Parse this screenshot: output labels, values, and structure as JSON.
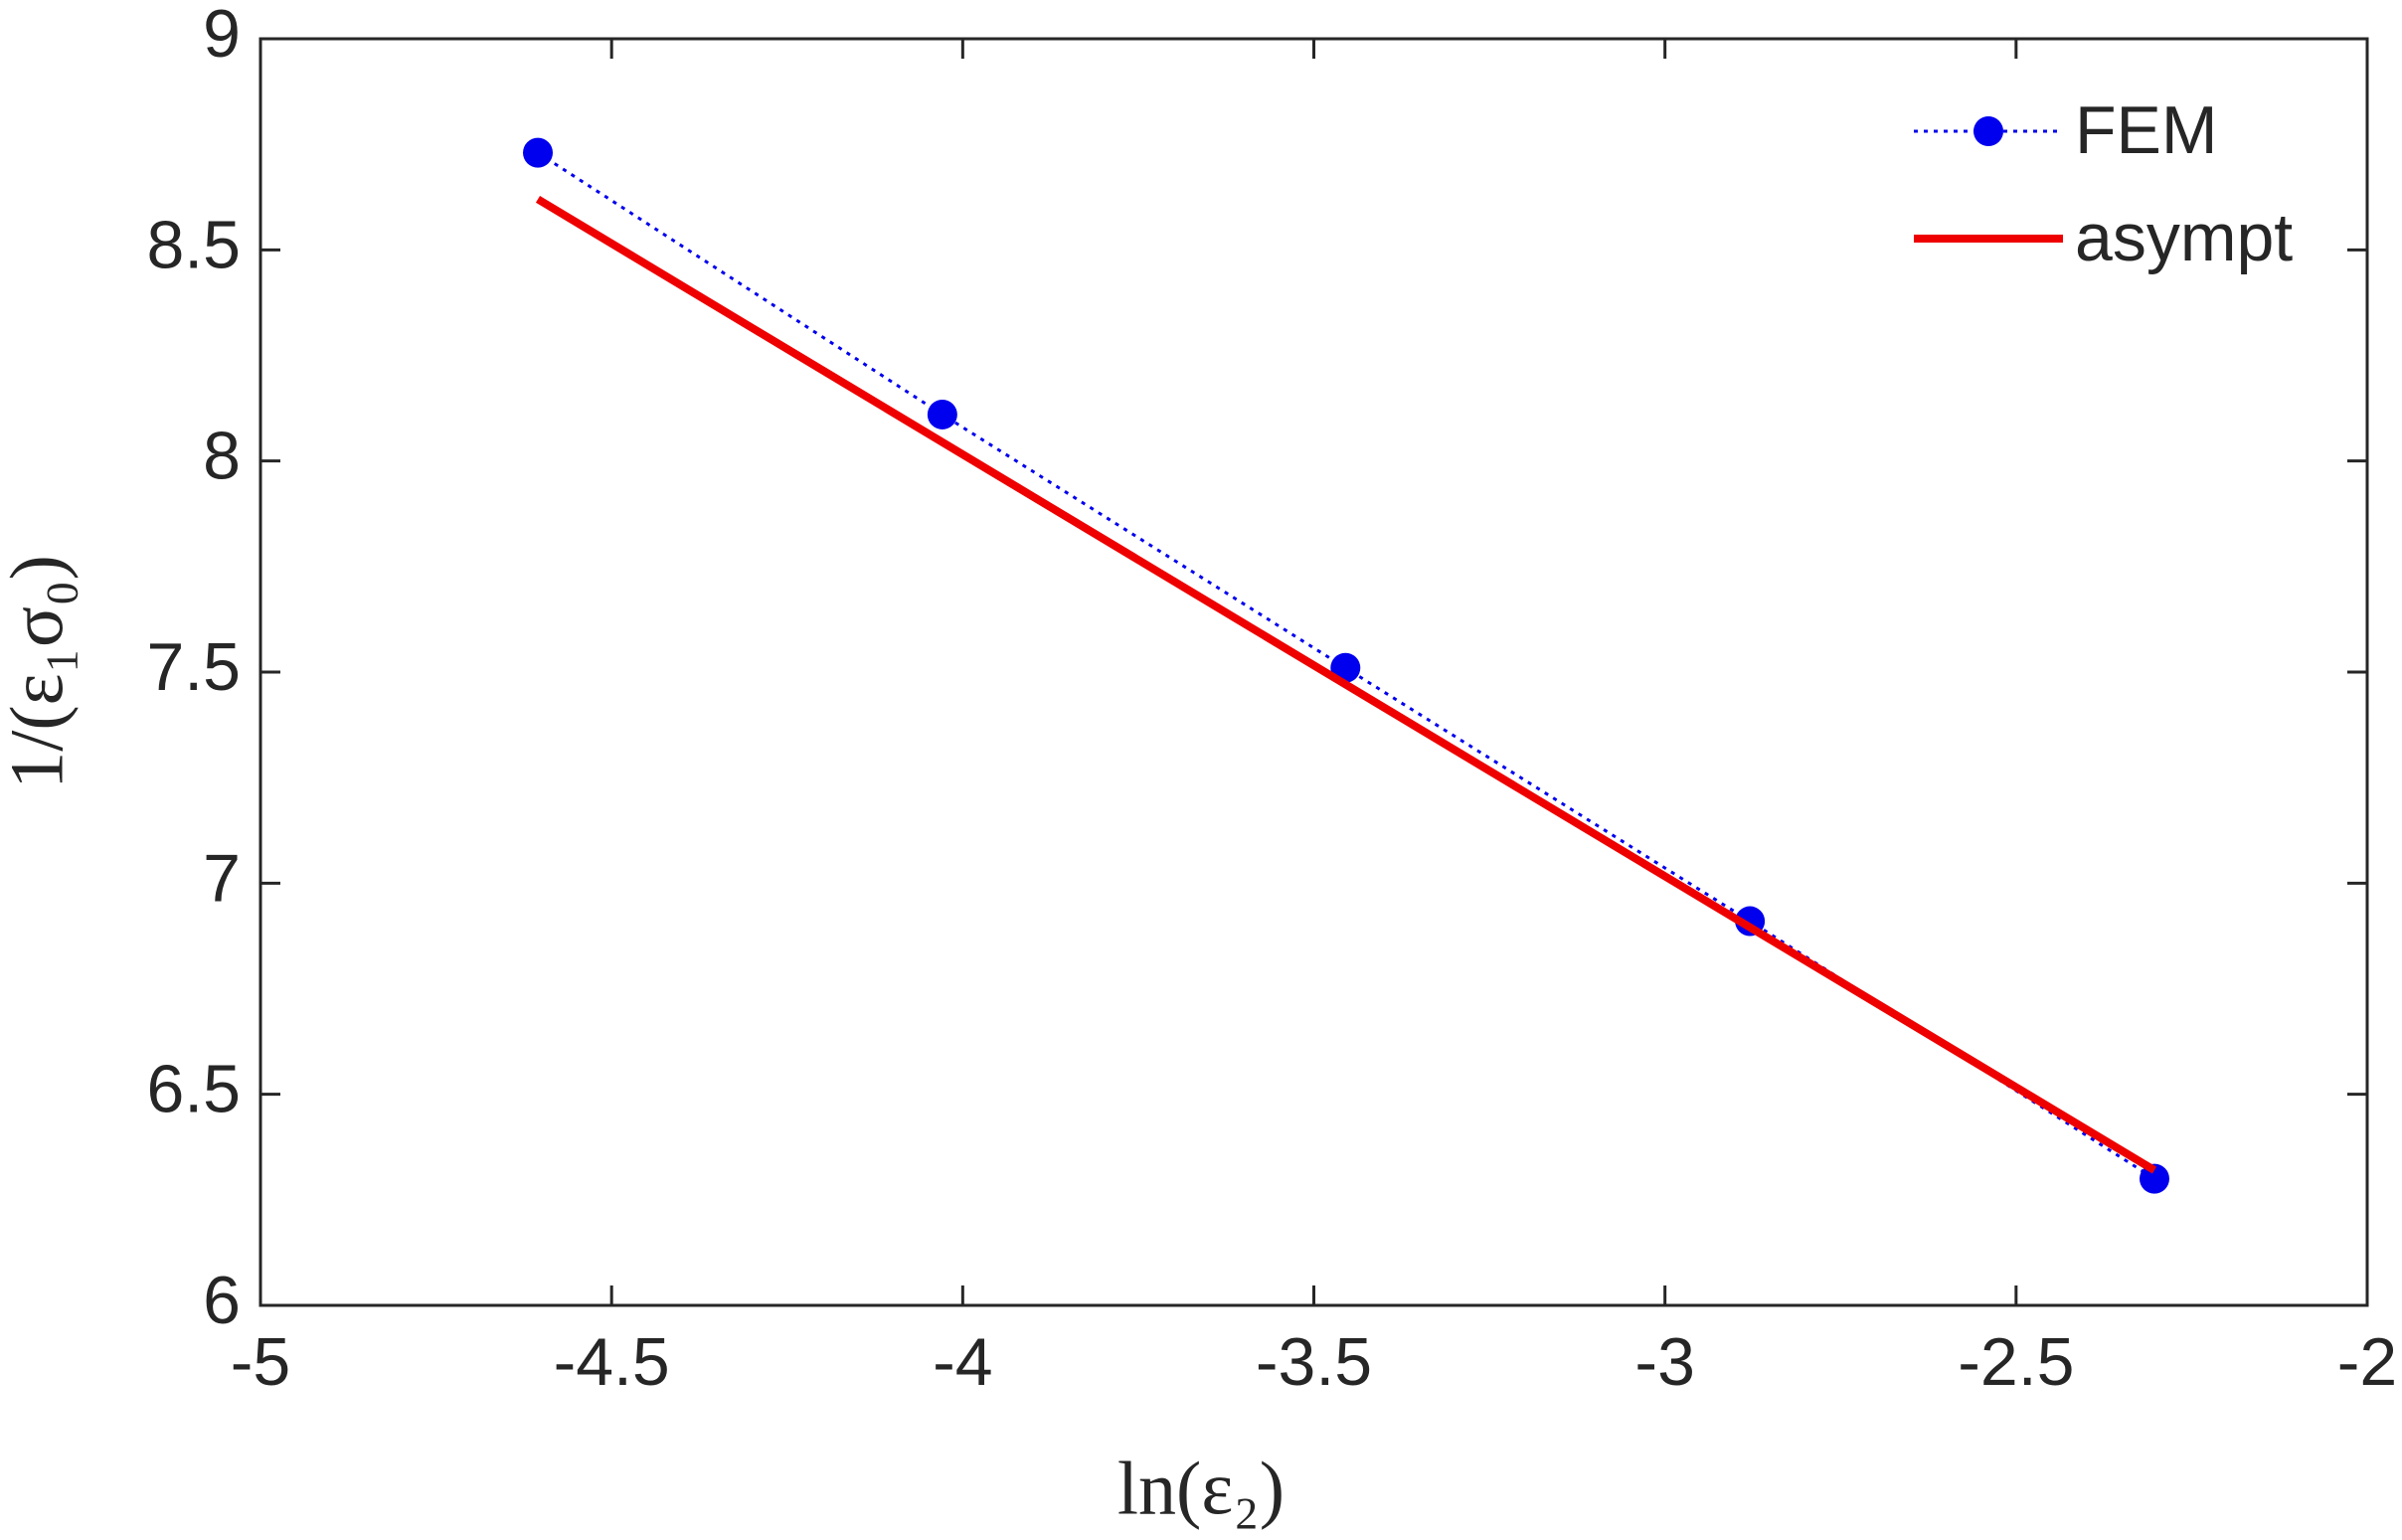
{
  "chart_data": {
    "type": "line",
    "xlabel": "ln(ε₂)",
    "ylabel": "1/(ε₁σ₀)",
    "xlim": [
      -5,
      -2
    ],
    "ylim": [
      6,
      9
    ],
    "xticks": [
      -5,
      -4.5,
      -4,
      -3.5,
      -3,
      -2.5,
      -2
    ],
    "yticks": [
      6,
      6.5,
      7,
      7.5,
      8,
      8.5,
      9
    ],
    "legend": "northeast",
    "grid": false,
    "series": [
      {
        "name": "FEM",
        "color": "#0000ee",
        "style": "dotted",
        "marker": "circle",
        "x": [
          -4.605,
          -4.029,
          -3.455,
          -2.879,
          -2.303
        ],
        "values": [
          8.73,
          8.11,
          7.51,
          6.91,
          6.3
        ]
      },
      {
        "name": "asympt",
        "color": "#ee0000",
        "style": "solid",
        "x": [
          -4.605,
          -2.303
        ],
        "values": [
          8.62,
          6.32
        ]
      }
    ]
  }
}
